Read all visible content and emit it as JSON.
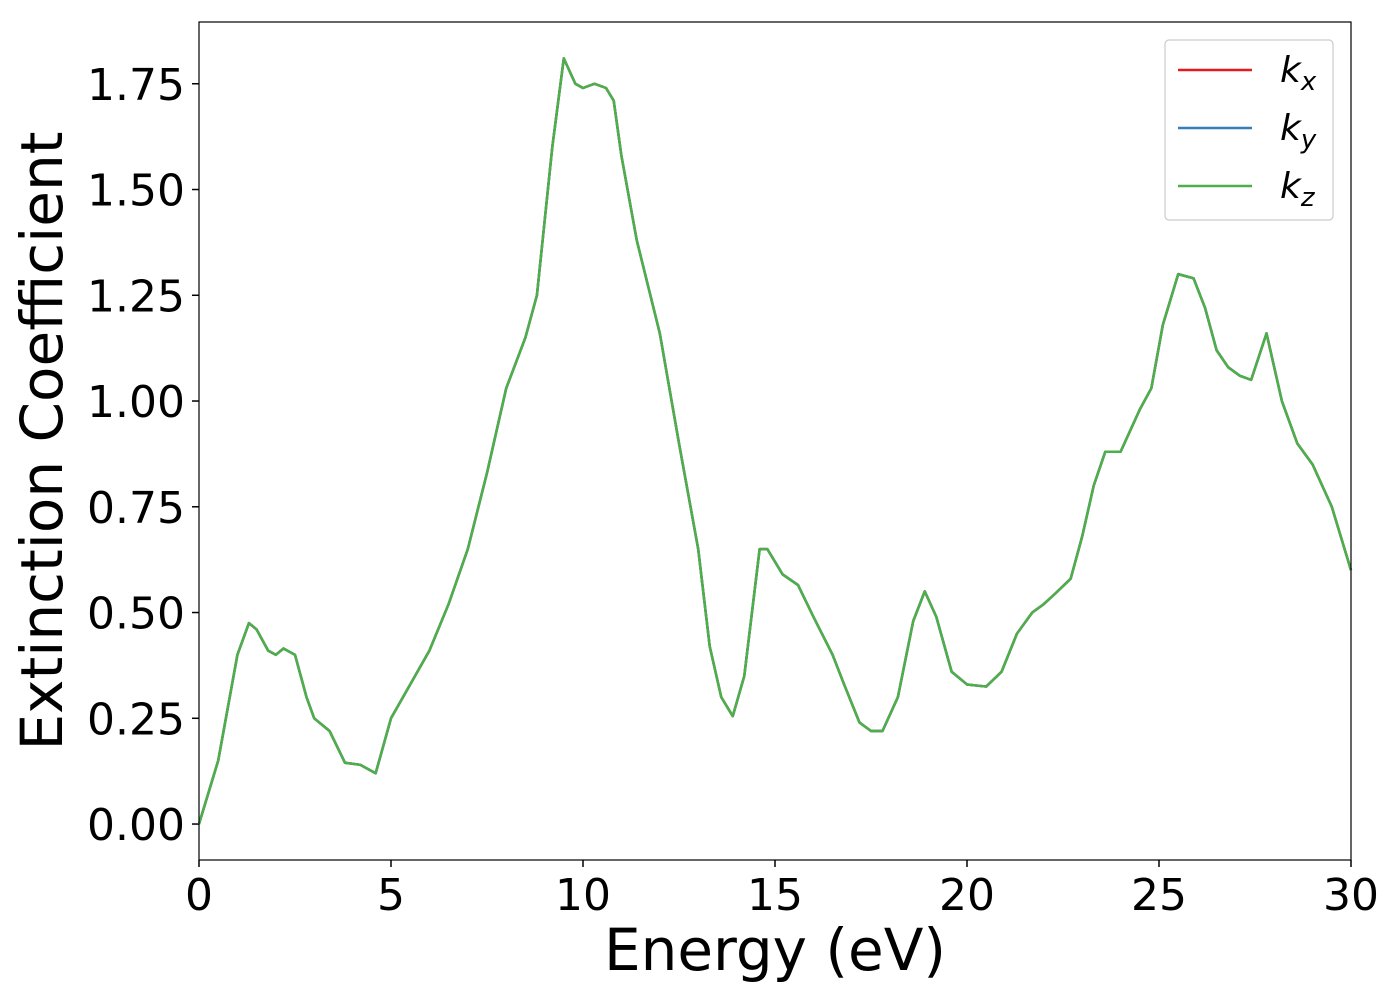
{
  "chart_data": {
    "type": "line",
    "x_label": "Energy (eV)",
    "y_label": "Extinction Coefficient",
    "x": [
      0,
      0.5,
      1.0,
      1.3,
      1.5,
      1.8,
      2.0,
      2.2,
      2.5,
      2.8,
      3.0,
      3.4,
      3.8,
      4.2,
      4.6,
      5.0,
      5.5,
      6.0,
      6.5,
      7.0,
      7.5,
      8.0,
      8.5,
      8.8,
      9.2,
      9.5,
      9.8,
      10.0,
      10.3,
      10.6,
      10.8,
      11.0,
      11.4,
      12.0,
      12.5,
      13.0,
      13.3,
      13.6,
      13.9,
      14.2,
      14.6,
      14.8,
      15.2,
      15.6,
      16.0,
      16.5,
      16.8,
      17.2,
      17.5,
      17.8,
      18.2,
      18.6,
      18.9,
      19.2,
      19.6,
      20.0,
      20.5,
      20.9,
      21.3,
      21.7,
      22.0,
      22.3,
      22.7,
      23.0,
      23.3,
      23.6,
      24.0,
      24.5,
      24.8,
      25.1,
      25.5,
      25.9,
      26.2,
      26.5,
      26.8,
      27.1,
      27.4,
      27.8,
      28.2,
      28.6,
      29.0,
      29.5,
      30.0
    ],
    "series": [
      {
        "name": "kx",
        "color": "#e41a1c",
        "values": [
          0.0,
          0.15,
          0.4,
          0.475,
          0.46,
          0.41,
          0.4,
          0.415,
          0.4,
          0.3,
          0.25,
          0.22,
          0.145,
          0.14,
          0.12,
          0.25,
          0.33,
          0.41,
          0.52,
          0.65,
          0.83,
          1.03,
          1.15,
          1.25,
          1.6,
          1.81,
          1.75,
          1.74,
          1.75,
          1.74,
          1.71,
          1.58,
          1.38,
          1.16,
          0.9,
          0.65,
          0.42,
          0.3,
          0.255,
          0.35,
          0.65,
          0.65,
          0.59,
          0.565,
          0.49,
          0.4,
          0.33,
          0.24,
          0.22,
          0.22,
          0.3,
          0.48,
          0.55,
          0.49,
          0.36,
          0.33,
          0.325,
          0.36,
          0.45,
          0.5,
          0.52,
          0.545,
          0.58,
          0.68,
          0.8,
          0.88,
          0.88,
          0.98,
          1.03,
          1.18,
          1.3,
          1.29,
          1.22,
          1.12,
          1.08,
          1.06,
          1.05,
          1.16,
          1.0,
          0.9,
          0.85,
          0.75,
          0.6
        ]
      },
      {
        "name": "ky",
        "color": "#377eb8",
        "values": [
          0.0,
          0.15,
          0.4,
          0.475,
          0.46,
          0.41,
          0.4,
          0.415,
          0.4,
          0.3,
          0.25,
          0.22,
          0.145,
          0.14,
          0.12,
          0.25,
          0.33,
          0.41,
          0.52,
          0.65,
          0.83,
          1.03,
          1.15,
          1.25,
          1.6,
          1.81,
          1.75,
          1.74,
          1.75,
          1.74,
          1.71,
          1.58,
          1.38,
          1.16,
          0.9,
          0.65,
          0.42,
          0.3,
          0.255,
          0.35,
          0.65,
          0.65,
          0.59,
          0.565,
          0.49,
          0.4,
          0.33,
          0.24,
          0.22,
          0.22,
          0.3,
          0.48,
          0.55,
          0.49,
          0.36,
          0.33,
          0.325,
          0.36,
          0.45,
          0.5,
          0.52,
          0.545,
          0.58,
          0.68,
          0.8,
          0.88,
          0.88,
          0.98,
          1.03,
          1.18,
          1.3,
          1.29,
          1.22,
          1.12,
          1.08,
          1.06,
          1.05,
          1.16,
          1.0,
          0.9,
          0.85,
          0.75,
          0.6
        ]
      },
      {
        "name": "kz",
        "color": "#4daf4a",
        "values": [
          0.0,
          0.15,
          0.4,
          0.475,
          0.46,
          0.41,
          0.4,
          0.415,
          0.4,
          0.3,
          0.25,
          0.22,
          0.145,
          0.14,
          0.12,
          0.25,
          0.33,
          0.41,
          0.52,
          0.65,
          0.83,
          1.03,
          1.15,
          1.25,
          1.6,
          1.81,
          1.75,
          1.74,
          1.75,
          1.74,
          1.71,
          1.58,
          1.38,
          1.16,
          0.9,
          0.65,
          0.42,
          0.3,
          0.255,
          0.35,
          0.65,
          0.65,
          0.59,
          0.565,
          0.49,
          0.4,
          0.33,
          0.24,
          0.22,
          0.22,
          0.3,
          0.48,
          0.55,
          0.49,
          0.36,
          0.33,
          0.325,
          0.36,
          0.45,
          0.5,
          0.52,
          0.545,
          0.58,
          0.68,
          0.8,
          0.88,
          0.88,
          0.98,
          1.03,
          1.18,
          1.3,
          1.29,
          1.22,
          1.12,
          1.08,
          1.06,
          1.05,
          1.16,
          1.0,
          0.9,
          0.85,
          0.75,
          0.6
        ]
      }
    ],
    "xlim": [
      0,
      30
    ],
    "xticks": [
      0,
      5,
      10,
      15,
      20,
      25,
      30
    ],
    "ylim": [
      -0.085,
      1.896
    ],
    "yticks": [
      {
        "value": 0,
        "label": "0.00"
      },
      {
        "value": 0.25,
        "label": "0.25"
      },
      {
        "value": 0.5,
        "label": "0.50"
      },
      {
        "value": 0.75,
        "label": "0.75"
      },
      {
        "value": 1,
        "label": "1.00"
      },
      {
        "value": 1.25,
        "label": "1.25"
      },
      {
        "value": 1.5,
        "label": "1.50"
      },
      {
        "value": 1.75,
        "label": "1.75"
      }
    ],
    "legend": "upper right",
    "grid": false
  }
}
